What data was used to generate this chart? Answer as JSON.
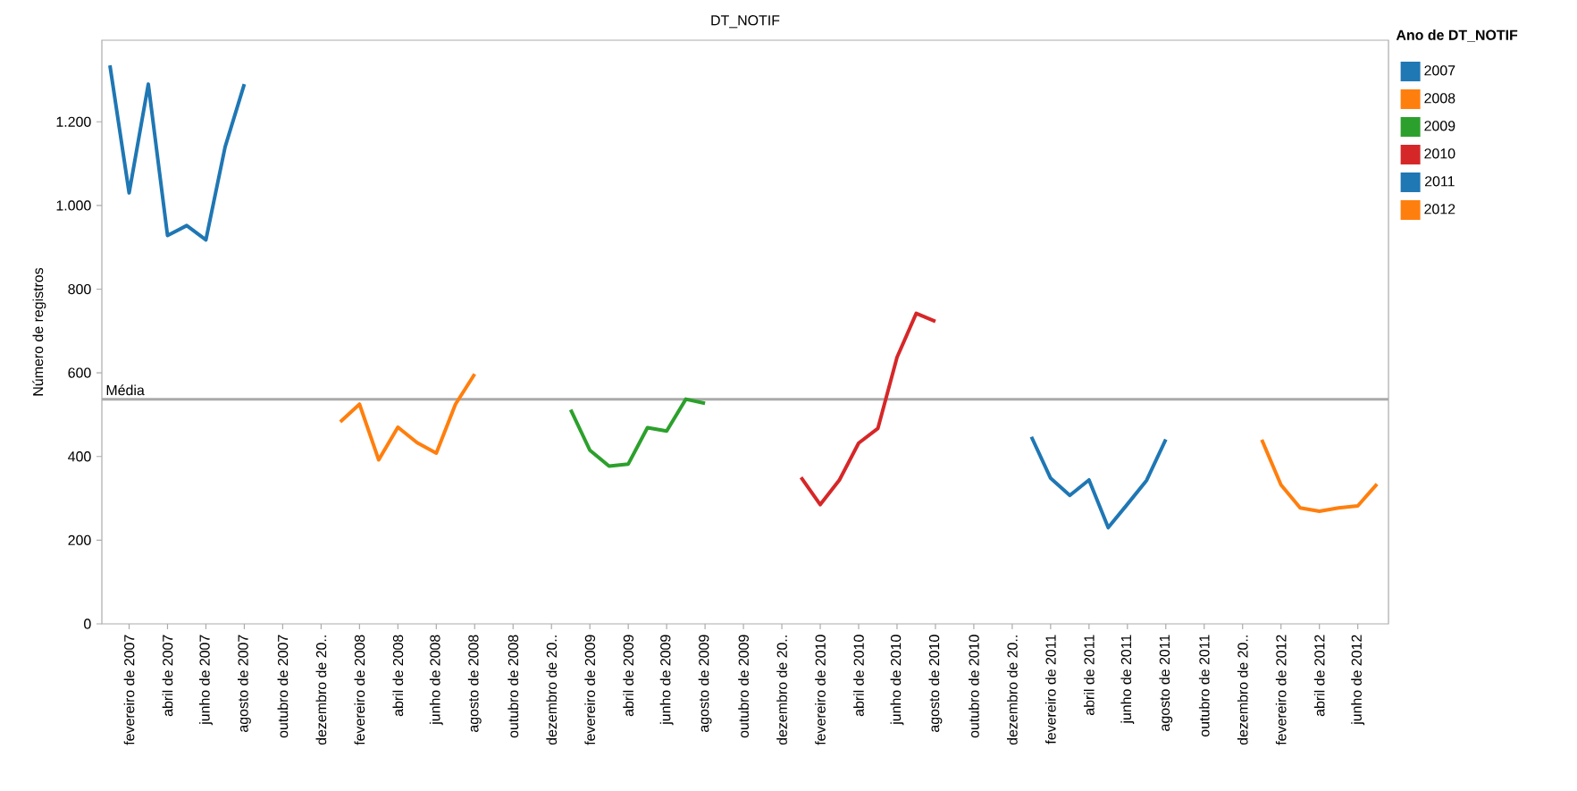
{
  "chart_data": {
    "type": "line",
    "title": "DT_NOTIF",
    "ylabel": "Número de registros",
    "legend_title": "Ano de DT_NOTIF",
    "legend": "top right",
    "categories": [
      null,
      "fevereiro de 2007",
      null,
      "abril de 2007",
      null,
      "junho de 2007",
      null,
      "agosto de 2007",
      null,
      "outubro de 2007",
      null,
      "dezembro de 20..",
      null,
      "fevereiro de 2008",
      null,
      "abril de 2008",
      null,
      "junho de 2008",
      null,
      "agosto de 2008",
      null,
      "outubro de 2008",
      null,
      "dezembro de 20..",
      null,
      "fevereiro de 2009",
      null,
      "abril de 2009",
      null,
      "junho de 2009",
      null,
      "agosto de 2009",
      null,
      "outubro de 2009",
      null,
      "dezembro de 20..",
      null,
      "fevereiro de 2010",
      null,
      "abril de 2010",
      null,
      "junho de 2010",
      null,
      "agosto de 2010",
      null,
      "outubro de 2010",
      null,
      "dezembro de 20..",
      null,
      "fevereiro de 2011",
      null,
      "abril de 2011",
      null,
      "junho de 2011",
      null,
      "agosto de 2011",
      null,
      "outubro de 2011",
      null,
      "dezembro de 20..",
      null,
      "fevereiro de 2012",
      null,
      "abril de 2012",
      null,
      "junho de 2012",
      null
    ],
    "ylim": [
      0,
      1395
    ],
    "yticks": [
      0,
      200,
      400,
      600,
      800,
      {
        "value": 1000,
        "label": "1.000"
      },
      {
        "value": 1200,
        "label": "1.200"
      }
    ],
    "ref_lines": [
      {
        "axis": "y",
        "value": 537,
        "label": "Média",
        "color": "#aaaaaa"
      }
    ],
    "series": [
      {
        "name": "2007",
        "color": "#1f77b4",
        "values": [
          1335,
          1030,
          1290,
          928,
          952,
          918,
          1140,
          1290,
          null,
          null,
          null,
          null,
          null,
          null,
          null,
          null,
          null,
          null,
          null,
          null,
          null,
          null,
          null,
          null,
          null,
          null,
          null,
          null,
          null,
          null,
          null,
          null,
          null,
          null,
          null,
          null,
          null,
          null,
          null,
          null,
          null,
          null,
          null,
          null,
          null,
          null,
          null,
          null,
          null,
          null,
          null,
          null,
          null,
          null,
          null,
          null,
          null,
          null,
          null,
          null,
          null,
          null,
          null,
          null,
          null,
          null,
          null
        ]
      },
      {
        "name": "2008",
        "color": "#ff7f0e",
        "values": [
          null,
          null,
          null,
          null,
          null,
          null,
          null,
          null,
          null,
          null,
          null,
          null,
          483,
          525,
          392,
          470,
          433,
          408,
          525,
          597,
          null,
          null,
          null,
          null,
          null,
          null,
          null,
          null,
          null,
          null,
          null,
          null,
          null,
          null,
          null,
          null,
          null,
          null,
          null,
          null,
          null,
          null,
          null,
          null,
          null,
          null,
          null,
          null,
          null,
          null,
          null,
          null,
          null,
          null,
          null,
          null,
          null,
          null,
          null,
          null,
          null,
          null,
          null,
          null,
          null,
          null,
          null
        ]
      },
      {
        "name": "2009",
        "color": "#2ca02c",
        "values": [
          null,
          null,
          null,
          null,
          null,
          null,
          null,
          null,
          null,
          null,
          null,
          null,
          null,
          null,
          null,
          null,
          null,
          null,
          null,
          null,
          null,
          null,
          null,
          null,
          512,
          415,
          377,
          382,
          469,
          461,
          537,
          527,
          null,
          null,
          null,
          null,
          null,
          null,
          null,
          null,
          null,
          null,
          null,
          null,
          null,
          null,
          null,
          null,
          null,
          null,
          null,
          null,
          null,
          null,
          null,
          null,
          null,
          null,
          null,
          null,
          null,
          null,
          null,
          null,
          null,
          null,
          null
        ]
      },
      {
        "name": "2010",
        "color": "#d62728",
        "values": [
          null,
          null,
          null,
          null,
          null,
          null,
          null,
          null,
          null,
          null,
          null,
          null,
          null,
          null,
          null,
          null,
          null,
          null,
          null,
          null,
          null,
          null,
          null,
          null,
          null,
          null,
          null,
          null,
          null,
          null,
          null,
          null,
          null,
          null,
          null,
          null,
          350,
          285,
          344,
          432,
          467,
          637,
          742,
          723,
          null,
          null,
          null,
          null,
          null,
          null,
          null,
          null,
          null,
          null,
          null,
          null,
          null,
          null,
          null,
          null,
          null,
          null,
          null,
          null,
          null,
          null,
          null
        ]
      },
      {
        "name": "2011",
        "color": "#1f77b4",
        "values": [
          null,
          null,
          null,
          null,
          null,
          null,
          null,
          null,
          null,
          null,
          null,
          null,
          null,
          null,
          null,
          null,
          null,
          null,
          null,
          null,
          null,
          null,
          null,
          null,
          null,
          null,
          null,
          null,
          null,
          null,
          null,
          null,
          null,
          null,
          null,
          null,
          null,
          null,
          null,
          null,
          null,
          null,
          null,
          null,
          null,
          null,
          null,
          null,
          447,
          348,
          307,
          344,
          230,
          286,
          343,
          441,
          null,
          null,
          null,
          null,
          null,
          null,
          null,
          null,
          null,
          null,
          null
        ]
      },
      {
        "name": "2012",
        "color": "#ff7f0e",
        "values": [
          null,
          null,
          null,
          null,
          null,
          null,
          null,
          null,
          null,
          null,
          null,
          null,
          null,
          null,
          null,
          null,
          null,
          null,
          null,
          null,
          null,
          null,
          null,
          null,
          null,
          null,
          null,
          null,
          null,
          null,
          null,
          null,
          null,
          null,
          null,
          null,
          null,
          null,
          null,
          null,
          null,
          null,
          null,
          null,
          null,
          null,
          null,
          null,
          null,
          null,
          null,
          null,
          null,
          null,
          null,
          null,
          null,
          null,
          null,
          null,
          440,
          332,
          277,
          269,
          277,
          282,
          334
        ]
      }
    ]
  }
}
